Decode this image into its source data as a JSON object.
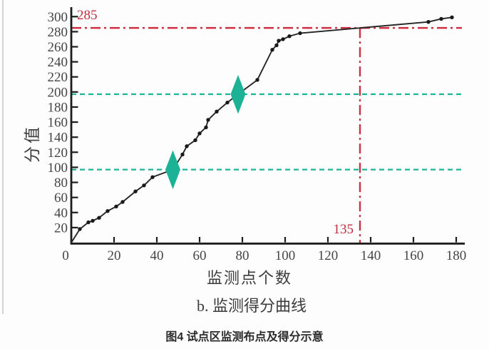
{
  "figure": {
    "y_axis_label": "分值",
    "x_axis_label": "监测点个数",
    "subcaption": "b. 监测得分曲线",
    "caption": "图4 试点区监测布点及得分示意"
  },
  "colors": {
    "curve": "#262626",
    "dot": "#1a1a1a",
    "axis": "#1c1c1c",
    "tick_text": "#454545",
    "red_line": "#d02f3f",
    "red_text": "#c22c3e",
    "teal_line": "#1ab598",
    "diamond": "#1cb296"
  },
  "chart_data": {
    "type": "line",
    "title": "b. 监测得分曲线",
    "xlabel": "监测点个数",
    "ylabel": "分值",
    "xlim": [
      0,
      183
    ],
    "ylim": [
      0,
      310
    ],
    "x_ticks": [
      0,
      20,
      40,
      60,
      80,
      100,
      120,
      140,
      160,
      180
    ],
    "y_ticks": [
      20,
      40,
      60,
      80,
      100,
      120,
      140,
      160,
      180,
      200,
      220,
      240,
      260,
      280,
      300
    ],
    "origin_label": "0",
    "grid": false,
    "legend": "none",
    "series": [
      {
        "name": "监测得分曲线",
        "points": [
          [
            0,
            0
          ],
          [
            4,
            18
          ],
          [
            8,
            27
          ],
          [
            10,
            29
          ],
          [
            13,
            33
          ],
          [
            17,
            42
          ],
          [
            21,
            48
          ],
          [
            24,
            54
          ],
          [
            30,
            68
          ],
          [
            34,
            76
          ],
          [
            38,
            87
          ],
          [
            47.5,
            97
          ],
          [
            52,
            117
          ],
          [
            54,
            128
          ],
          [
            58,
            136
          ],
          [
            60,
            145
          ],
          [
            63,
            153
          ],
          [
            64,
            163
          ],
          [
            68,
            174
          ],
          [
            73,
            186
          ],
          [
            78,
            197
          ],
          [
            87,
            216
          ],
          [
            94,
            256
          ],
          [
            96,
            262
          ],
          [
            97,
            268
          ],
          [
            99,
            270
          ],
          [
            102,
            274
          ],
          [
            107,
            278
          ],
          [
            167,
            293
          ],
          [
            173,
            297
          ],
          [
            178,
            299
          ]
        ]
      }
    ],
    "reference_lines": [
      {
        "orientation": "horizontal",
        "value": 285,
        "label": "285",
        "style": "dash-dot",
        "color": "#d02f3f"
      },
      {
        "orientation": "vertical",
        "value": 135,
        "label": "135",
        "style": "dash-dot",
        "color": "#d02f3f"
      },
      {
        "orientation": "horizontal",
        "value": 97,
        "label": "",
        "style": "dashed",
        "color": "#1ab598"
      },
      {
        "orientation": "horizontal",
        "value": 197,
        "label": "",
        "style": "dashed",
        "color": "#1ab598"
      }
    ],
    "markers": [
      {
        "x": 47.5,
        "y": 97,
        "shape": "diamond",
        "color": "#1cb296"
      },
      {
        "x": 78,
        "y": 197,
        "shape": "diamond",
        "color": "#1cb296"
      }
    ]
  }
}
